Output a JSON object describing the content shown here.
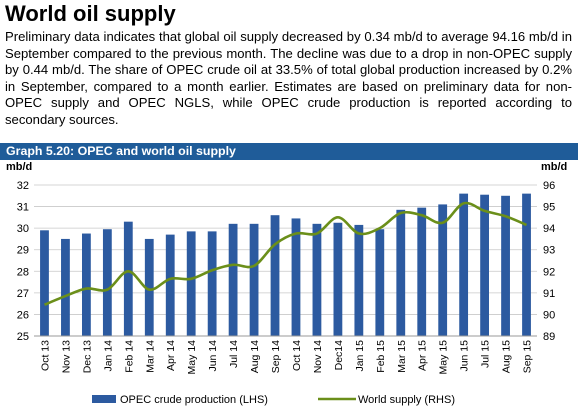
{
  "header": {
    "title": "World oil supply"
  },
  "paragraph": "Preliminary data indicates that global oil supply decreased by 0.34 mb/d to average 94.16 mb/d in September compared to the previous month. The decline was due to a drop in non-OPEC supply by 0.44 mb/d. The share of OPEC crude oil at 33.5% of total global production increased by 0.2% in September, compared to a month earlier. Estimates are based on preliminary data for non-OPEC supply and OPEC NGLS, while OPEC crude production is reported according to secondary sources.",
  "graph": {
    "title": "Graph 5.20: OPEC and world oil supply"
  },
  "colors": {
    "bar": "#2c5aa0",
    "line": "#6b8f1a",
    "grid": "#c8c8c8",
    "header_band": "#1f5c99"
  },
  "chart_data": {
    "type": "bar",
    "categories": [
      "Oct 13",
      "Nov 13",
      "Dec 13",
      "Jan 14",
      "Feb 14",
      "Mar 14",
      "Apr 14",
      "May 14",
      "Jun 14",
      "Jul 14",
      "Aug 14",
      "Sep 14",
      "Oct 14",
      "Nov 14",
      "Dec14",
      "Jan 15",
      "Feb 15",
      "Mar 15",
      "Apr 15",
      "May 15",
      "Jun 15",
      "Jul 15",
      "Aug 15",
      "Sep 15"
    ],
    "series": [
      {
        "name": "OPEC crude production (LHS)",
        "type": "bar",
        "axis": "left",
        "values": [
          29.9,
          29.5,
          29.75,
          29.95,
          30.3,
          29.5,
          29.7,
          29.85,
          29.85,
          30.2,
          30.2,
          30.6,
          30.45,
          30.2,
          30.25,
          30.15,
          29.95,
          30.85,
          30.95,
          31.1,
          31.6,
          31.55,
          31.5,
          31.6
        ]
      },
      {
        "name": "World supply (RHS)",
        "type": "line",
        "axis": "right",
        "values": [
          90.45,
          90.85,
          91.2,
          91.15,
          92.0,
          91.15,
          91.65,
          91.65,
          92.05,
          92.3,
          92.25,
          93.25,
          93.75,
          93.75,
          94.5,
          93.75,
          94.0,
          94.7,
          94.6,
          94.25,
          95.15,
          94.8,
          94.55,
          94.15
        ]
      }
    ],
    "y_left": {
      "label": "mb/d",
      "min": 25,
      "max": 32,
      "ticks": [
        25,
        26,
        27,
        28,
        29,
        30,
        31,
        32
      ]
    },
    "y_right": {
      "label": "mb/d",
      "min": 89,
      "max": 96,
      "ticks": [
        89,
        90,
        91,
        92,
        93,
        94,
        95,
        96
      ]
    },
    "grid": true,
    "legend_position": "bottom"
  }
}
